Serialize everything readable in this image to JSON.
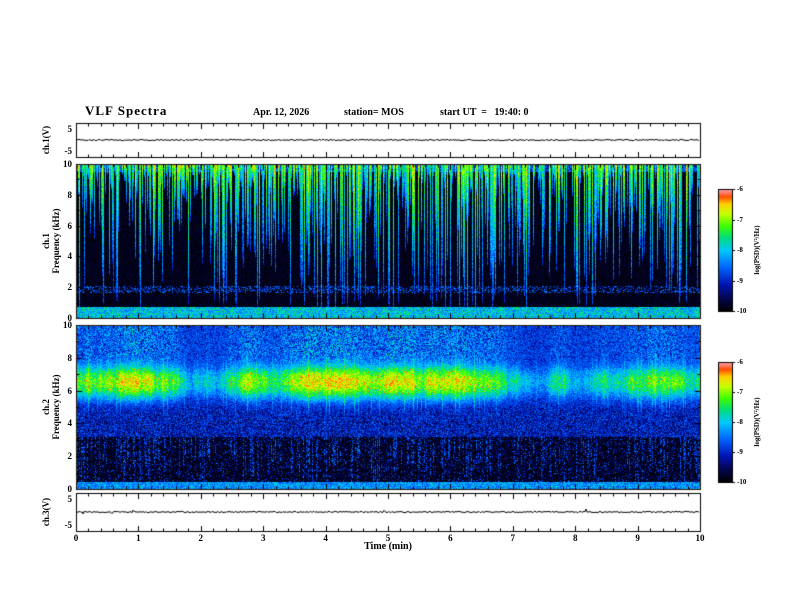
{
  "header": {
    "title": "VLF Spectra",
    "date": "Apr. 12, 2026",
    "station": "station= MOS",
    "start_ut": "start UT  =   19:40: 0"
  },
  "x_axis": {
    "label": "Time (min)",
    "range": [
      0,
      10
    ],
    "major_ticks": [
      0,
      1,
      2,
      3,
      4,
      5,
      6,
      7,
      8,
      9,
      10
    ]
  },
  "left_labels": {
    "ch1v": "ch.1(V)",
    "ch1_line1": "ch.1",
    "ch1_line2": "Frequency (kHz)",
    "ch2_line1": "ch.2",
    "ch2_line2": "Frequency (kHz)",
    "ch3v": "ch.3(V)"
  },
  "colorbar": {
    "label": "log(PSD)(V²/Hz)",
    "ticks": [
      -6,
      -7,
      -8,
      -9,
      -10
    ],
    "value_range": [
      -10,
      -6
    ],
    "gradient": [
      {
        "t": 0.0,
        "color": "#000000"
      },
      {
        "t": 0.1,
        "color": "#06064a"
      },
      {
        "t": 0.22,
        "color": "#0014b4"
      },
      {
        "t": 0.36,
        "color": "#0064ff"
      },
      {
        "t": 0.5,
        "color": "#00c8ff"
      },
      {
        "t": 0.6,
        "color": "#00dc82"
      },
      {
        "t": 0.7,
        "color": "#3cff00"
      },
      {
        "t": 0.8,
        "color": "#c8ff00"
      },
      {
        "t": 0.88,
        "color": "#ffd200"
      },
      {
        "t": 0.94,
        "color": "#ff5000"
      },
      {
        "t": 1.0,
        "color": "#ffa0b4"
      }
    ]
  },
  "chart_data": [
    {
      "id": "ch1-waveform",
      "type": "line",
      "ylabel": "ch.1(V)",
      "x_range": [
        0,
        10
      ],
      "y_range": [
        -5,
        5
      ],
      "y_ticks": [
        5,
        -5
      ],
      "summary": "flat trace near 0 V for the full 10 minutes"
    },
    {
      "id": "ch1-spectrogram",
      "type": "heatmap",
      "ylabel": "ch.1 Frequency (kHz)",
      "x_range": [
        0,
        10
      ],
      "y_range": [
        0,
        10
      ],
      "y_ticks": [
        0,
        2,
        4,
        6,
        8,
        10
      ],
      "value_range": [
        -10,
        -6
      ],
      "summary": "black background with dense impulsive blue-green vertical streaks descending from 10 kHz, a blue band below ~0.8 kHz and faint horizontal lines near 1-2 kHz",
      "features": {
        "streak_density": 0.78,
        "streak_peak_level": -6.6,
        "background_level": -10,
        "bottom_band_kHz": [
          0,
          0.75
        ],
        "bottom_band_level": -8.2
      }
    },
    {
      "id": "ch2-spectrogram",
      "type": "heatmap",
      "ylabel": "ch.2 Frequency (kHz)",
      "x_range": [
        0,
        10
      ],
      "y_range": [
        0,
        10
      ],
      "y_ticks": [
        0,
        2,
        4,
        6,
        8,
        10
      ],
      "value_range": [
        -10,
        -6
      ],
      "summary": "continuous bright green-yellow emission band centred near 6.6 kHz with red hot spots, blue speckle haze above ~3 kHz and sparse blue streaks below",
      "features": {
        "band_center_kHz": 6.6,
        "band_width_kHz": 1.4,
        "band_level": -7.0,
        "hot_spot_level": -6.1,
        "background_level": -9.5
      }
    },
    {
      "id": "ch3-waveform",
      "type": "line",
      "ylabel": "ch.3(V)",
      "x_range": [
        0,
        10
      ],
      "y_range": [
        -5,
        5
      ],
      "y_ticks": [
        5,
        -5
      ],
      "summary": "flat trace near 0 V with tiny spikes"
    }
  ]
}
